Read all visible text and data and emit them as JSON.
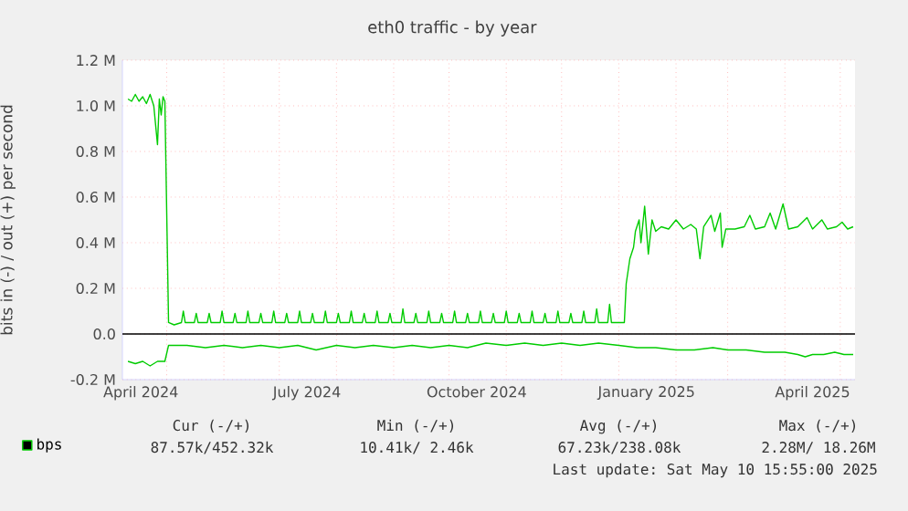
{
  "chart_data": {
    "type": "line",
    "title": "eth0 traffic - by year",
    "ylabel": "bits in (-) / out (+) per second",
    "xlim": [
      "2024-04-07",
      "2025-05-09"
    ],
    "ylim": [
      -0.2,
      1.2
    ],
    "xticks": [
      {
        "value": "2024-04-17",
        "label": "April 2024"
      },
      {
        "value": "2024-07-16",
        "label": "July 2024"
      },
      {
        "value": "2024-10-16",
        "label": "October 2024"
      },
      {
        "value": "2025-01-16",
        "label": "January 2025"
      },
      {
        "value": "2025-04-16",
        "label": "April 2025"
      },
      {
        "value": "2024-05-01",
        "label": null
      },
      {
        "value": "2024-06-01",
        "label": null
      },
      {
        "value": "2024-07-01",
        "label": null
      },
      {
        "value": "2024-08-01",
        "label": null
      },
      {
        "value": "2024-09-01",
        "label": null
      },
      {
        "value": "2024-10-01",
        "label": null
      },
      {
        "value": "2024-11-01",
        "label": null
      },
      {
        "value": "2024-12-01",
        "label": null
      },
      {
        "value": "2025-01-01",
        "label": null
      },
      {
        "value": "2025-02-01",
        "label": null
      },
      {
        "value": "2025-03-01",
        "label": null
      },
      {
        "value": "2025-04-01",
        "label": null
      },
      {
        "value": "2025-05-01",
        "label": null
      }
    ],
    "yticks": [
      {
        "value": -0.2,
        "label": "-0.2 M"
      },
      {
        "value": 0,
        "label": "0.0"
      },
      {
        "value": 0.2,
        "label": "0.2 M"
      },
      {
        "value": 0.4,
        "label": "0.4 M"
      },
      {
        "value": 0.6,
        "label": "0.6 M"
      },
      {
        "value": 0.8,
        "label": "0.8 M"
      },
      {
        "value": 1.0,
        "label": "1.0 M"
      },
      {
        "value": 1.2,
        "label": "1.2 M"
      }
    ],
    "grid": true,
    "legend": "bottom left",
    "ref_lines": [
      {
        "axis": "y",
        "value": 0,
        "color": "#000000"
      }
    ],
    "series": [
      {
        "name": "bps",
        "color": "#00cc00",
        "x": [
          "2024-04-10",
          "2024-04-12",
          "2024-04-14",
          "2024-04-16",
          "2024-04-18",
          "2024-04-20",
          "2024-04-22",
          "2024-04-24",
          "2024-04-26",
          "2024-04-27",
          "2024-04-28",
          "2024-04-29",
          "2024-04-30",
          "2024-05-02",
          "2024-05-05",
          "2024-05-09",
          "2024-05-10",
          "2024-05-11",
          "2024-05-16",
          "2024-05-17",
          "2024-05-18",
          "2024-05-23",
          "2024-05-24",
          "2024-05-25",
          "2024-05-30",
          "2024-05-31",
          "2024-06-01",
          "2024-06-06",
          "2024-06-07",
          "2024-06-08",
          "2024-06-13",
          "2024-06-14",
          "2024-06-15",
          "2024-06-20",
          "2024-06-21",
          "2024-06-22",
          "2024-06-27",
          "2024-06-28",
          "2024-06-29",
          "2024-07-04",
          "2024-07-05",
          "2024-07-06",
          "2024-07-11",
          "2024-07-12",
          "2024-07-13",
          "2024-07-18",
          "2024-07-19",
          "2024-07-20",
          "2024-07-25",
          "2024-07-26",
          "2024-07-27",
          "2024-08-01",
          "2024-08-02",
          "2024-08-03",
          "2024-08-08",
          "2024-08-09",
          "2024-08-10",
          "2024-08-15",
          "2024-08-16",
          "2024-08-17",
          "2024-08-22",
          "2024-08-23",
          "2024-08-24",
          "2024-08-29",
          "2024-08-30",
          "2024-08-31",
          "2024-09-05",
          "2024-09-06",
          "2024-09-07",
          "2024-09-12",
          "2024-09-13",
          "2024-09-14",
          "2024-09-19",
          "2024-09-20",
          "2024-09-21",
          "2024-09-26",
          "2024-09-27",
          "2024-09-28",
          "2024-10-03",
          "2024-10-04",
          "2024-10-05",
          "2024-10-10",
          "2024-10-11",
          "2024-10-12",
          "2024-10-17",
          "2024-10-18",
          "2024-10-19",
          "2024-10-24",
          "2024-10-25",
          "2024-10-26",
          "2024-10-31",
          "2024-11-01",
          "2024-11-02",
          "2024-11-07",
          "2024-11-08",
          "2024-11-09",
          "2024-11-14",
          "2024-11-15",
          "2024-11-16",
          "2024-11-21",
          "2024-11-22",
          "2024-11-23",
          "2024-11-28",
          "2024-11-29",
          "2024-11-30",
          "2024-12-05",
          "2024-12-06",
          "2024-12-07",
          "2024-12-12",
          "2024-12-13",
          "2024-12-14",
          "2024-12-19",
          "2024-12-20",
          "2024-12-21",
          "2024-12-26",
          "2024-12-27",
          "2024-12-28",
          "2025-01-04",
          "2025-01-05",
          "2025-01-07",
          "2025-01-09",
          "2025-01-10",
          "2025-01-12",
          "2025-01-13",
          "2025-01-15",
          "2025-01-17",
          "2025-01-19",
          "2025-01-21",
          "2025-01-24",
          "2025-01-28",
          "2025-02-01",
          "2025-02-05",
          "2025-02-09",
          "2025-02-12",
          "2025-02-14",
          "2025-02-16",
          "2025-02-20",
          "2025-02-22",
          "2025-02-25",
          "2025-02-26",
          "2025-02-28",
          "2025-03-05",
          "2025-03-10",
          "2025-03-13",
          "2025-03-16",
          "2025-03-21",
          "2025-03-24",
          "2025-03-27",
          "2025-03-31",
          "2025-04-03",
          "2025-04-08",
          "2025-04-13",
          "2025-04-16",
          "2025-04-21",
          "2025-04-24",
          "2025-04-29",
          "2025-05-02",
          "2025-05-05",
          "2025-05-08"
        ],
        "values": [
          1.03,
          1.02,
          1.05,
          1.02,
          1.04,
          1.01,
          1.05,
          1.0,
          0.83,
          1.03,
          0.96,
          1.04,
          1.02,
          0.05,
          0.04,
          0.05,
          0.1,
          0.05,
          0.05,
          0.09,
          0.05,
          0.05,
          0.09,
          0.05,
          0.05,
          0.1,
          0.05,
          0.05,
          0.09,
          0.05,
          0.05,
          0.1,
          0.05,
          0.05,
          0.09,
          0.05,
          0.05,
          0.1,
          0.05,
          0.05,
          0.09,
          0.05,
          0.05,
          0.1,
          0.05,
          0.05,
          0.09,
          0.05,
          0.05,
          0.1,
          0.05,
          0.05,
          0.09,
          0.05,
          0.05,
          0.1,
          0.05,
          0.05,
          0.09,
          0.05,
          0.05,
          0.1,
          0.05,
          0.05,
          0.09,
          0.05,
          0.05,
          0.11,
          0.05,
          0.05,
          0.09,
          0.05,
          0.05,
          0.1,
          0.05,
          0.05,
          0.09,
          0.05,
          0.05,
          0.1,
          0.05,
          0.05,
          0.09,
          0.05,
          0.05,
          0.1,
          0.05,
          0.05,
          0.09,
          0.05,
          0.05,
          0.1,
          0.05,
          0.05,
          0.09,
          0.05,
          0.05,
          0.1,
          0.05,
          0.05,
          0.09,
          0.05,
          0.05,
          0.1,
          0.05,
          0.05,
          0.09,
          0.05,
          0.05,
          0.1,
          0.05,
          0.05,
          0.11,
          0.05,
          0.05,
          0.13,
          0.05,
          0.05,
          0.22,
          0.33,
          0.38,
          0.45,
          0.5,
          0.4,
          0.56,
          0.35,
          0.5,
          0.45,
          0.47,
          0.46,
          0.5,
          0.46,
          0.48,
          0.46,
          0.33,
          0.47,
          0.52,
          0.45,
          0.53,
          0.38,
          0.46,
          0.46,
          0.47,
          0.52,
          0.46,
          0.47,
          0.53,
          0.46,
          0.57,
          0.46,
          0.47,
          0.51,
          0.46,
          0.5,
          0.46,
          0.47,
          0.49,
          0.46,
          0.47
        ]
      },
      {
        "color": "#00cc00",
        "x": [
          "2024-04-10",
          "2024-04-14",
          "2024-04-18",
          "2024-04-22",
          "2024-04-26",
          "2024-04-30",
          "2024-05-02",
          "2024-05-12",
          "2024-05-22",
          "2024-06-01",
          "2024-06-11",
          "2024-06-21",
          "2024-07-01",
          "2024-07-11",
          "2024-07-21",
          "2024-08-01",
          "2024-08-11",
          "2024-08-21",
          "2024-09-01",
          "2024-09-11",
          "2024-09-21",
          "2024-10-01",
          "2024-10-11",
          "2024-10-21",
          "2024-11-01",
          "2024-11-11",
          "2024-11-21",
          "2024-12-01",
          "2024-12-11",
          "2024-12-21",
          "2025-01-01",
          "2025-01-11",
          "2025-01-21",
          "2025-02-01",
          "2025-02-11",
          "2025-02-21",
          "2025-03-01",
          "2025-03-11",
          "2025-03-21",
          "2025-04-01",
          "2025-04-08",
          "2025-04-12",
          "2025-04-16",
          "2025-04-22",
          "2025-04-28",
          "2025-05-03",
          "2025-05-08"
        ],
        "values": [
          -0.12,
          -0.13,
          -0.12,
          -0.14,
          -0.12,
          -0.12,
          -0.05,
          -0.05,
          -0.06,
          -0.05,
          -0.06,
          -0.05,
          -0.06,
          -0.05,
          -0.07,
          -0.05,
          -0.06,
          -0.05,
          -0.06,
          -0.05,
          -0.06,
          -0.05,
          -0.06,
          -0.04,
          -0.05,
          -0.04,
          -0.05,
          -0.04,
          -0.05,
          -0.04,
          -0.05,
          -0.06,
          -0.06,
          -0.07,
          -0.07,
          -0.06,
          -0.07,
          -0.07,
          -0.08,
          -0.08,
          -0.09,
          -0.1,
          -0.09,
          -0.09,
          -0.08,
          -0.09,
          -0.09
        ]
      }
    ],
    "annotations": [
      "Cur (-/+)",
      "Min (-/+)",
      "Avg (-/+)",
      "Max (-/+)",
      "87.57k/452.32k",
      "10.41k/   2.46k",
      "67.23k/238.08k",
      "2.28M/ 18.26M",
      "Last update: Sat May 10 15:55:00 2025"
    ]
  }
}
